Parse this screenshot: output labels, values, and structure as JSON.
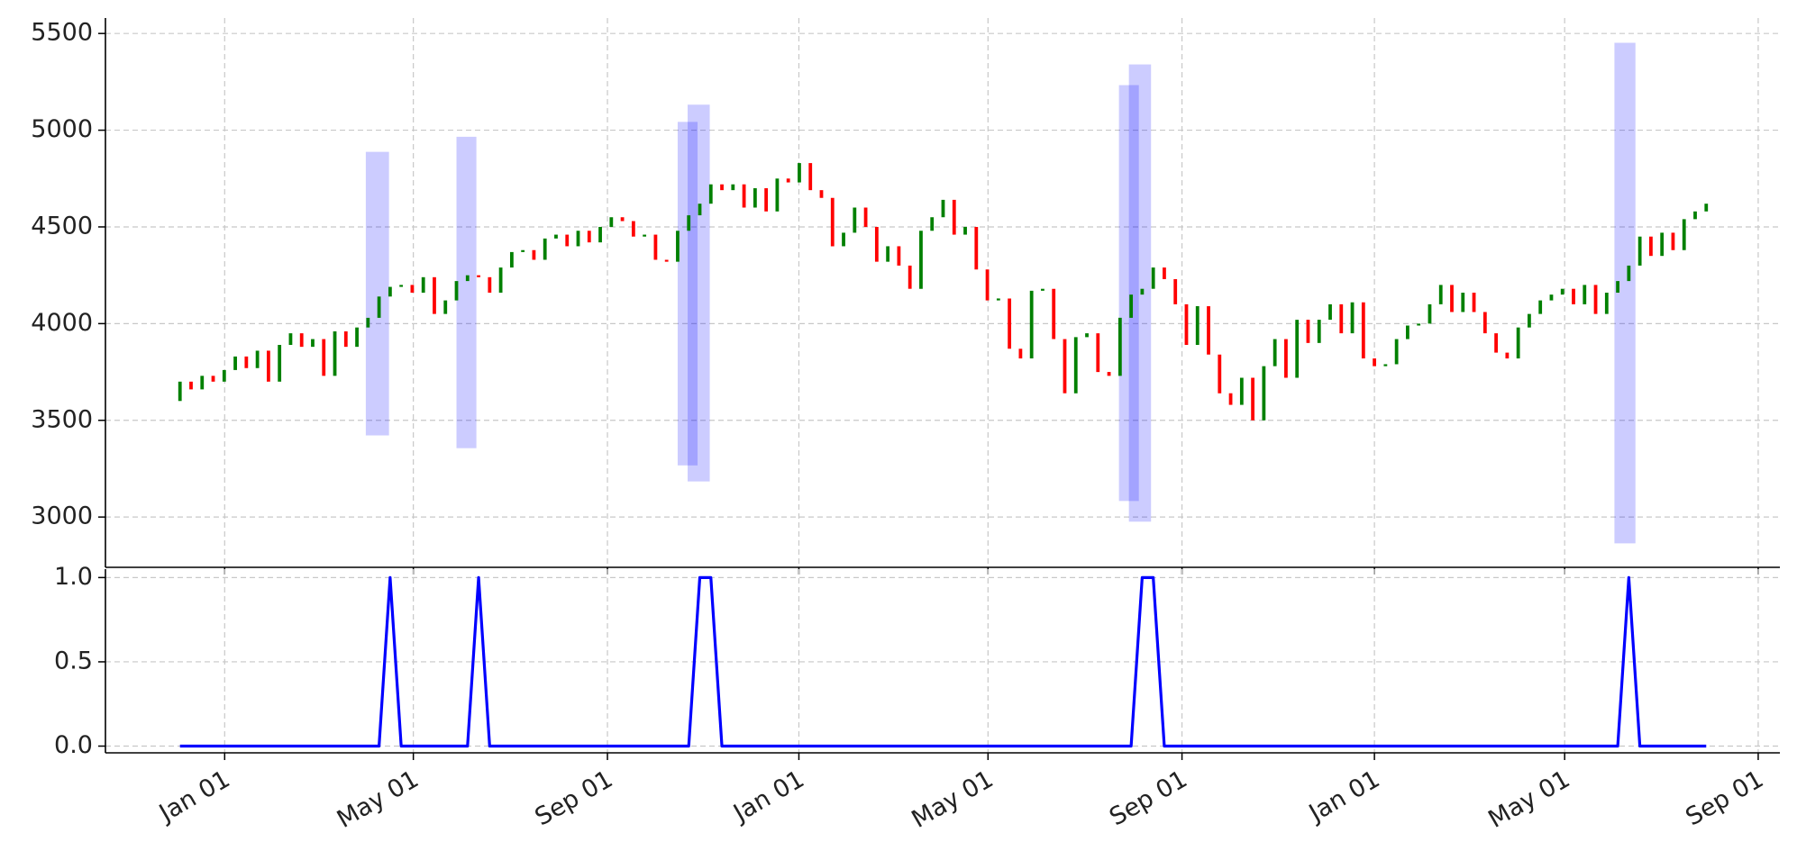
{
  "chart_data": [
    {
      "type": "candlestick",
      "up_color": "green",
      "down_color": "red",
      "span_color": "#0000ff",
      "open": [
        3600,
        3700,
        3660,
        3730,
        3700,
        3760,
        3830,
        3770,
        3860,
        3700,
        3890,
        3950,
        3880,
        3920,
        3730,
        3960,
        3880,
        3980,
        4030,
        4140,
        4190,
        4200,
        4160,
        4240,
        4050,
        4120,
        4220,
        4250,
        4240,
        4160,
        4290,
        4370,
        4380,
        4330,
        4440,
        4460,
        4400,
        4480,
        4420,
        4500,
        4550,
        4530,
        4450,
        4460,
        4330,
        4320,
        4480,
        4560,
        4620,
        4720,
        4690,
        4720,
        4600,
        4700,
        4580,
        4750,
        4730,
        4830,
        4690,
        4650,
        4400,
        4470,
        4600,
        4500,
        4320,
        4400,
        4300,
        4180,
        4480,
        4550,
        4640,
        4460,
        4500,
        4280,
        4120,
        4130,
        3870,
        3820,
        4170,
        4180,
        3920,
        3640,
        3930,
        3950,
        3750,
        3730,
        4030,
        4150,
        4180,
        4290,
        4230,
        4100,
        3890,
        4090,
        3840,
        3640,
        3580,
        3720,
        3500,
        3780,
        3920,
        3720,
        4020,
        3900,
        4020,
        4100,
        3950,
        4110,
        3820,
        3780,
        3790,
        3920,
        3990,
        4000,
        4100,
        4200,
        4060,
        4160,
        4060,
        3950,
        3850,
        3820,
        3980,
        4050,
        4120,
        4150,
        4180,
        4100,
        4200,
        4050,
        4160,
        4220,
        4300,
        4450,
        4350,
        4470,
        4380,
        4540,
        4580
      ],
      "close": [
        3700,
        3660,
        3730,
        3700,
        3760,
        3830,
        3770,
        3860,
        3700,
        3890,
        3950,
        3880,
        3920,
        3730,
        3960,
        3880,
        3980,
        4030,
        4140,
        4190,
        4200,
        4160,
        4240,
        4050,
        4120,
        4220,
        4250,
        4240,
        4160,
        4290,
        4370,
        4380,
        4330,
        4440,
        4460,
        4400,
        4480,
        4420,
        4500,
        4550,
        4530,
        4450,
        4460,
        4330,
        4320,
        4480,
        4560,
        4620,
        4720,
        4690,
        4720,
        4600,
        4700,
        4580,
        4750,
        4730,
        4830,
        4690,
        4650,
        4400,
        4470,
        4600,
        4500,
        4320,
        4400,
        4300,
        4180,
        4480,
        4550,
        4640,
        4460,
        4500,
        4280,
        4120,
        4130,
        3870,
        3820,
        4170,
        4180,
        3920,
        3640,
        3930,
        3950,
        3750,
        3730,
        4030,
        4150,
        4180,
        4290,
        4230,
        4100,
        3890,
        4090,
        3840,
        3640,
        3580,
        3720,
        3500,
        3780,
        3920,
        3720,
        4020,
        3900,
        4020,
        4100,
        3950,
        4110,
        3820,
        3780,
        3790,
        3920,
        3990,
        4000,
        4100,
        4200,
        4060,
        4160,
        4060,
        3950,
        3850,
        3820,
        3980,
        4050,
        4120,
        4150,
        4180,
        4100,
        4200,
        4050,
        4160,
        4220,
        4300,
        4450,
        4350,
        4470,
        4380,
        4540,
        4580,
        4620
      ],
      "spans": [
        {
          "start": 16.8,
          "end": 18.9,
          "low": 3422,
          "high": 4888
        },
        {
          "start": 25.0,
          "end": 26.8,
          "low": 3356,
          "high": 4966
        },
        {
          "start": 45.0,
          "end": 46.8,
          "low": 3267,
          "high": 5043
        },
        {
          "start": 45.9,
          "end": 47.9,
          "low": 3184,
          "high": 5132
        },
        {
          "start": 84.9,
          "end": 86.7,
          "low": 3083,
          "high": 5233
        },
        {
          "start": 85.8,
          "end": 87.8,
          "low": 2976,
          "high": 5340
        },
        {
          "start": 129.7,
          "end": 131.6,
          "low": 2864,
          "high": 5452
        }
      ],
      "ylim": [
        2740,
        5580
      ],
      "yticks": [
        3000,
        3500,
        4000,
        4500,
        5000,
        5500
      ],
      "grid": true
    },
    {
      "type": "line",
      "color": "blue",
      "values": [
        0,
        0,
        0,
        0,
        0,
        0,
        0,
        0,
        0,
        0,
        0,
        0,
        0,
        0,
        0,
        0,
        0,
        0,
        0,
        1,
        0,
        0,
        0,
        0,
        0,
        0,
        0,
        1,
        0,
        0,
        0,
        0,
        0,
        0,
        0,
        0,
        0,
        0,
        0,
        0,
        0,
        0,
        0,
        0,
        0,
        0,
        0,
        1,
        1,
        0,
        0,
        0,
        0,
        0,
        0,
        0,
        0,
        0,
        0,
        0,
        0,
        0,
        0,
        0,
        0,
        0,
        0,
        0,
        0,
        0,
        0,
        0,
        0,
        0,
        0,
        0,
        0,
        0,
        0,
        0,
        0,
        0,
        0,
        0,
        0,
        0,
        0,
        1,
        1,
        0,
        0,
        0,
        0,
        0,
        0,
        0,
        0,
        0,
        0,
        0,
        0,
        0,
        0,
        0,
        0,
        0,
        0,
        0,
        0,
        0,
        0,
        0,
        0,
        0,
        0,
        0,
        0,
        0,
        0,
        0,
        0,
        0,
        0,
        0,
        0,
        0,
        0,
        0,
        0,
        0,
        0,
        1,
        0,
        0,
        0,
        0,
        0,
        0,
        0
      ],
      "ylim": [
        -0.04,
        1.05
      ],
      "yticks": [
        {
          "value": 0,
          "label": "0.0"
        },
        {
          "value": 0.5,
          "label": "0.5"
        },
        {
          "value": 1,
          "label": "1.0"
        }
      ],
      "xlim": [
        -6.74,
        144.66
      ],
      "xticks": [
        {
          "value": 4.04,
          "label": "Jan 01"
        },
        {
          "value": 21.1,
          "label": "May 01"
        },
        {
          "value": 38.65,
          "label": "Sep 01"
        },
        {
          "value": 55.96,
          "label": "Jan 01"
        },
        {
          "value": 73.06,
          "label": "May 01"
        },
        {
          "value": 90.6,
          "label": "Sep 01"
        },
        {
          "value": 108.0,
          "label": "Jan 01"
        },
        {
          "value": 125.2,
          "label": "May 01"
        },
        {
          "value": 142.7,
          "label": "Sep 01"
        }
      ],
      "grid": true
    }
  ]
}
